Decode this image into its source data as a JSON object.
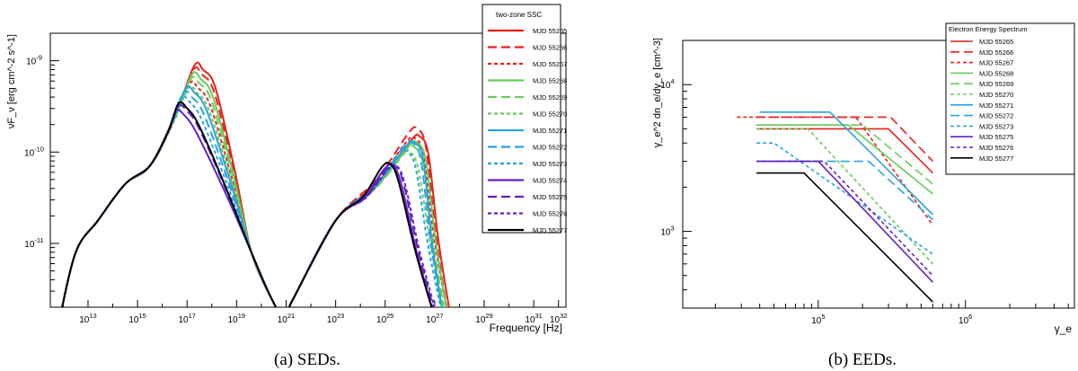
{
  "colors": {
    "red": "#e8201a",
    "green": "#67cc5a",
    "cyan": "#2aa3e0",
    "violet": "#6222c4",
    "black": "#000000"
  },
  "chart_data": [
    {
      "type": "line",
      "caption": "(a) SEDs.",
      "xlabel": "Frequency [Hz]",
      "ylabel": "νF_ν [erg cm^-2 s^-1]",
      "x_scale": "log",
      "y_scale": "log",
      "xlim": [
        300000000000.0,
        2e+32
      ],
      "ylim": [
        2e-12,
        2e-09
      ],
      "x_ticks": [
        "10^13",
        "10^15",
        "10^17",
        "10^19",
        "10^21",
        "10^23",
        "10^25",
        "10^27",
        "10^29",
        "10^31",
        "10^32"
      ],
      "y_ticks": [
        "10^-9",
        "10^-10",
        "10^-11"
      ],
      "legend": {
        "title": "two-zone SSC",
        "placement": "top-right",
        "entries": [
          {
            "label": "MJD 55265",
            "color": "#e8201a",
            "dash": "solid"
          },
          {
            "label": "MJD 55266",
            "color": "#e8201a",
            "dash": "longdash"
          },
          {
            "label": "MJD 55267",
            "color": "#e8201a",
            "dash": "dotted"
          },
          {
            "label": "MJD 55268",
            "color": "#67cc5a",
            "dash": "solid"
          },
          {
            "label": "MJD 55269",
            "color": "#67cc5a",
            "dash": "longdash"
          },
          {
            "label": "MJD 55270",
            "color": "#67cc5a",
            "dash": "dotted"
          },
          {
            "label": "MJD 55271",
            "color": "#2aa3e0",
            "dash": "solid"
          },
          {
            "label": "MJD 55272",
            "color": "#2aa3e0",
            "dash": "longdash"
          },
          {
            "label": "MJD 55273",
            "color": "#2aa3e0",
            "dash": "dotted"
          },
          {
            "label": "MJD 55274",
            "color": "#6222c4",
            "dash": "solid"
          },
          {
            "label": "MJD 55275",
            "color": "#6222c4",
            "dash": "longdash"
          },
          {
            "label": "MJD 55276",
            "color": "#6222c4",
            "dash": "dotted"
          },
          {
            "label": "MJD 55277",
            "color": "#000000",
            "dash": "solid"
          }
        ]
      },
      "shared_points": {
        "log_x": [
          11.8,
          12.5,
          13.4,
          14.5,
          15.5,
          19.6,
          20.4,
          20.9,
          21.3,
          23.0
        ],
        "log_y": [
          -11.9,
          -11.1,
          -10.75,
          -10.35,
          -10.15,
          -11.1,
          -11.6,
          -11.8,
          -11.6,
          -10.75
        ]
      },
      "series": [
        {
          "name": "MJD 55265",
          "sync_peak": [
            17.65,
            -9.1
          ],
          "sync_end": [
            19.6,
            -11.1
          ],
          "ic_peak": [
            26.4,
            -9.83
          ],
          "ic_end": [
            27.7,
            -11.9
          ]
        },
        {
          "name": "MJD 55266",
          "sync_peak": [
            17.6,
            -9.15
          ],
          "sync_end": [
            19.6,
            -11.1
          ],
          "ic_peak": [
            26.3,
            -9.75
          ],
          "ic_end": [
            27.6,
            -11.9
          ]
        },
        {
          "name": "MJD 55267",
          "sync_peak": [
            17.45,
            -9.3
          ],
          "sync_end": [
            19.6,
            -11.1
          ],
          "ic_peak": [
            26.2,
            -9.85
          ],
          "ic_end": [
            27.6,
            -11.9
          ]
        },
        {
          "name": "MJD 55268",
          "sync_peak": [
            17.55,
            -9.2
          ],
          "sync_end": [
            19.6,
            -11.1
          ],
          "ic_peak": [
            26.3,
            -9.9
          ],
          "ic_end": [
            27.6,
            -11.9
          ]
        },
        {
          "name": "MJD 55269",
          "sync_peak": [
            17.5,
            -9.25
          ],
          "sync_end": [
            19.6,
            -11.1
          ],
          "ic_peak": [
            26.2,
            -9.95
          ],
          "ic_end": [
            27.5,
            -11.9
          ]
        },
        {
          "name": "MJD 55270",
          "sync_peak": [
            17.4,
            -9.35
          ],
          "sync_end": [
            19.6,
            -11.1
          ],
          "ic_peak": [
            26.0,
            -10.0
          ],
          "ic_end": [
            27.5,
            -11.9
          ]
        },
        {
          "name": "MJD 55271",
          "sync_peak": [
            17.3,
            -9.35
          ],
          "sync_end": [
            19.6,
            -11.1
          ],
          "ic_peak": [
            26.2,
            -9.9
          ],
          "ic_end": [
            27.4,
            -11.9
          ]
        },
        {
          "name": "MJD 55272",
          "sync_peak": [
            17.2,
            -9.4
          ],
          "sync_end": [
            19.6,
            -11.1
          ],
          "ic_peak": [
            26.1,
            -9.9
          ],
          "ic_end": [
            27.4,
            -11.9
          ]
        },
        {
          "name": "MJD 55273",
          "sync_peak": [
            17.1,
            -9.45
          ],
          "sync_end": [
            19.6,
            -11.1
          ],
          "ic_peak": [
            25.9,
            -10.0
          ],
          "ic_end": [
            27.4,
            -11.9
          ]
        },
        {
          "name": "MJD 55274",
          "sync_peak": [
            16.9,
            -9.6
          ],
          "sync_end": [
            19.6,
            -11.1
          ],
          "ic_peak": [
            25.3,
            -10.15
          ],
          "ic_end": [
            27.1,
            -11.9
          ]
        },
        {
          "name": "MJD 55275",
          "sync_peak": [
            17.0,
            -9.55
          ],
          "sync_end": [
            19.6,
            -11.1
          ],
          "ic_peak": [
            25.4,
            -10.15
          ],
          "ic_end": [
            27.15,
            -11.9
          ]
        },
        {
          "name": "MJD 55276",
          "sync_peak": [
            17.0,
            -9.52
          ],
          "sync_end": [
            19.6,
            -11.1
          ],
          "ic_peak": [
            25.45,
            -10.15
          ],
          "ic_end": [
            27.2,
            -11.9
          ]
        },
        {
          "name": "MJD 55277",
          "sync_peak": [
            17.0,
            -9.52
          ],
          "sync_end": [
            19.6,
            -11.1
          ],
          "ic_peak": [
            25.2,
            -10.13
          ],
          "ic_end": [
            27.1,
            -11.9
          ]
        }
      ]
    },
    {
      "type": "line",
      "caption": "(b) EEDs.",
      "xlabel": "γ_e",
      "ylabel": "γ_e^2 dn_e/dγ_e [cm^-3]",
      "x_scale": "log",
      "y_scale": "log",
      "xlim": [
        12000,
        5500000
      ],
      "ylim": [
        300,
        20000
      ],
      "x_ticks": [
        "10^5",
        "10^6"
      ],
      "y_ticks": [
        "10^4",
        "10^3"
      ],
      "legend": {
        "title": "Electron Energy Spectrum",
        "placement": "top-right",
        "entries": [
          {
            "label": "MJD 55265",
            "color": "#e8201a",
            "dash": "solid"
          },
          {
            "label": "MJD 55266",
            "color": "#e8201a",
            "dash": "longdash"
          },
          {
            "label": "MJD 55267",
            "color": "#e8201a",
            "dash": "dotted"
          },
          {
            "label": "MJD 55268",
            "color": "#67cc5a",
            "dash": "solid"
          },
          {
            "label": "MJD 55269",
            "color": "#67cc5a",
            "dash": "longdash"
          },
          {
            "label": "MJD 55270",
            "color": "#67cc5a",
            "dash": "dotted"
          },
          {
            "label": "MJD 55271",
            "color": "#2aa3e0",
            "dash": "solid"
          },
          {
            "label": "MJD 55272",
            "color": "#2aa3e0",
            "dash": "longdash"
          },
          {
            "label": "MJD 55273",
            "color": "#2aa3e0",
            "dash": "dotted"
          },
          {
            "label": "MJD 55275",
            "color": "#6222c4",
            "dash": "solid"
          },
          {
            "label": "MJD 55276",
            "color": "#6222c4",
            "dash": "dotted"
          },
          {
            "label": "MJD 55277",
            "color": "#000000",
            "dash": "solid"
          }
        ]
      },
      "series": [
        {
          "name": "MJD 55265",
          "gamma_min": 38000,
          "gamma_break": 300000,
          "level": 5000,
          "end_value": 2500
        },
        {
          "name": "MJD 55266",
          "gamma_min": 38000,
          "gamma_break": 310000,
          "level": 6000,
          "end_value": 3000
        },
        {
          "name": "MJD 55267",
          "gamma_min": 28000,
          "gamma_break": 180000,
          "level": 6000,
          "end_value": 1100
        },
        {
          "name": "MJD 55268",
          "gamma_min": 38000,
          "gamma_break": 160000,
          "level": 5300,
          "end_value": 1800
        },
        {
          "name": "MJD 55269",
          "gamma_min": 38000,
          "gamma_break": 200000,
          "level": 5300,
          "end_value": 2100
        },
        {
          "name": "MJD 55270",
          "gamma_min": 38000,
          "gamma_break": 85000,
          "level": 5000,
          "end_value": 600
        },
        {
          "name": "MJD 55271",
          "gamma_min": 40000,
          "gamma_break": 120000,
          "level": 6500,
          "end_value": 1300
        },
        {
          "name": "MJD 55272",
          "gamma_min": 40000,
          "gamma_break": 220000,
          "level": 3000,
          "end_value": 1200
        },
        {
          "name": "MJD 55273",
          "gamma_min": 38000,
          "gamma_break": 50000,
          "level": 4000,
          "end_value": 700
        },
        {
          "name": "MJD 55275",
          "gamma_min": 38000,
          "gamma_break": 100000,
          "level": 3000,
          "end_value": 450
        },
        {
          "name": "MJD 55276",
          "gamma_min": 38000,
          "gamma_break": 110000,
          "level": 3000,
          "end_value": 500
        },
        {
          "name": "MJD 55277",
          "gamma_min": 38000,
          "gamma_break": 80000,
          "level": 2500,
          "end_value": 330
        }
      ]
    }
  ]
}
